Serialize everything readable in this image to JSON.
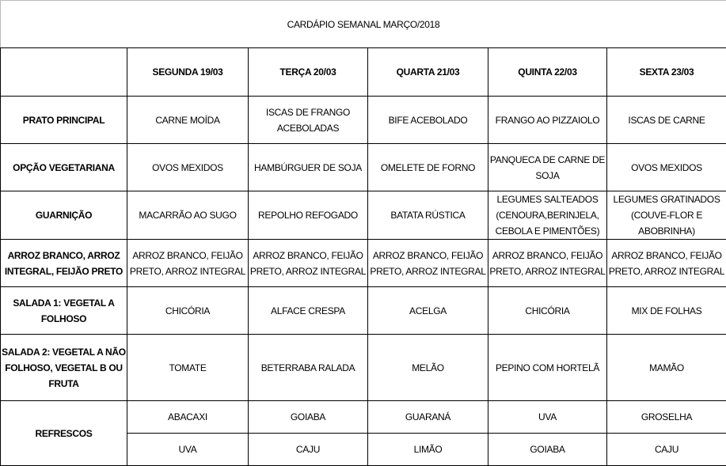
{
  "title": "CARDÁPIO SEMANAL MARÇO/2018",
  "days": [
    "SEGUNDA  19/03",
    "TERÇA 20/03",
    "QUARTA 21/03",
    "QUINTA 22/03",
    "SEXTA 23/03"
  ],
  "rows": [
    {
      "label": "PRATO PRINCIPAL",
      "cells": [
        "CARNE MOÍDA",
        "ISCAS DE FRANGO ACEBOLADAS",
        "BIFE ACEBOLADO",
        "FRANGO AO PIZZAIOLO",
        "ISCAS DE CARNE"
      ]
    },
    {
      "label": "OPÇÃO VEGETARIANA",
      "cells": [
        "OVOS MEXIDOS",
        "HAMBÚRGUER DE SOJA",
        "OMELETE DE FORNO",
        "PANQUECA DE CARNE DE SOJA",
        "OVOS MEXIDOS"
      ]
    },
    {
      "label": "GUARNIÇÃO",
      "cells": [
        "MACARRÃO AO SUGO",
        "REPOLHO REFOGADO",
        "BATATA RÚSTICA",
        "LEGUMES SALTEADOS (CENOURA,BERINJELA, CEBOLA E PIMENTÕES)",
        "LEGUMES GRATINADOS (COUVE-FLOR E ABOBRINHA)"
      ]
    },
    {
      "label": "ARROZ BRANCO, ARROZ INTEGRAL, FEIJÃO PRETO",
      "cells": [
        "ARROZ BRANCO, FEIJÃO PRETO, ARROZ INTEGRAL",
        "ARROZ BRANCO, FEIJÃO PRETO, ARROZ INTEGRAL",
        "ARROZ BRANCO, FEIJÃO PRETO, ARROZ INTEGRAL",
        "ARROZ BRANCO, FEIJÃO PRETO, ARROZ INTEGRAL",
        "ARROZ BRANCO, FEIJÃO PRETO, ARROZ INTEGRAL"
      ]
    },
    {
      "label": "SALADA 1: VEGETAL A FOLHOSO",
      "cells": [
        "CHICÓRIA",
        "ALFACE CRESPA",
        "ACELGA",
        "CHICÓRIA",
        "MIX DE FOLHAS"
      ]
    },
    {
      "label": "SALADA 2: VEGETAL A NÃO FOLHOSO, VEGETAL B OU FRUTA",
      "cells": [
        "TOMATE",
        "BETERRABA RALADA",
        "MELÃO",
        "PEPINO COM HORTELÃ",
        "MAMÃO"
      ]
    }
  ],
  "refrescos": {
    "label": "REFRESCOS",
    "rows": [
      [
        "ABACAXI",
        "GOIABA",
        "GUARANÁ",
        "UVA",
        "GROSELHA"
      ],
      [
        "UVA",
        "CAJU",
        "LIMÃO",
        "GOIABA",
        "CAJU"
      ]
    ]
  }
}
